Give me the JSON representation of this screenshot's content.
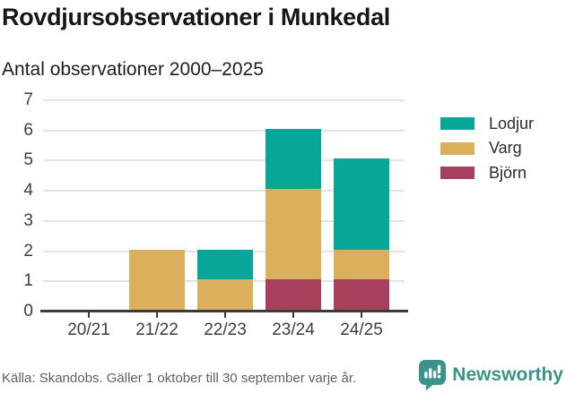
{
  "header": {
    "title": "Rovdjursobservationer i Munkedal",
    "subtitle": "Antal observationer 2000–2025"
  },
  "chart_data": {
    "type": "bar",
    "stacked": true,
    "title": "Rovdjursobservationer i Munkedal",
    "subtitle": "Antal observationer 2000–2025",
    "categories": [
      "20/21",
      "21/22",
      "22/23",
      "23/24",
      "24/25"
    ],
    "series": [
      {
        "name": "Björn",
        "color": "#a7405d",
        "values": [
          0,
          0,
          0,
          1,
          1
        ]
      },
      {
        "name": "Varg",
        "color": "#dbb05c",
        "values": [
          0,
          2,
          1,
          3,
          1
        ]
      },
      {
        "name": "Lodjur",
        "color": "#06a699",
        "values": [
          0,
          0,
          1,
          2,
          3
        ]
      }
    ],
    "stack_order_bottom_to_top": [
      "Björn",
      "Varg",
      "Lodjur"
    ],
    "totals": [
      0,
      2,
      2,
      6,
      5
    ],
    "legend": [
      {
        "label": "Lodjur",
        "color": "#06a699"
      },
      {
        "label": "Varg",
        "color": "#dbb05c"
      },
      {
        "label": "Björn",
        "color": "#a7405d"
      }
    ],
    "legend_position": "right",
    "xlabel": "",
    "ylabel": "",
    "yticks": [
      0,
      1,
      2,
      3,
      4,
      5,
      6,
      7
    ],
    "ylim": [
      0,
      7
    ],
    "grid": true,
    "colors": {
      "gridline": "#e3e3e3",
      "axis": "#3b3b3b",
      "tick_label": "#3d3d3d"
    }
  },
  "footer": {
    "source": "Källa: Skandobs. Gäller 1 oktober till 30 september varje år.",
    "brand": "Newsworthy",
    "brand_color": "#3b938b"
  },
  "icons": {
    "brand_logo": "newsworthy-speech-bubble-bar-chart-icon"
  }
}
